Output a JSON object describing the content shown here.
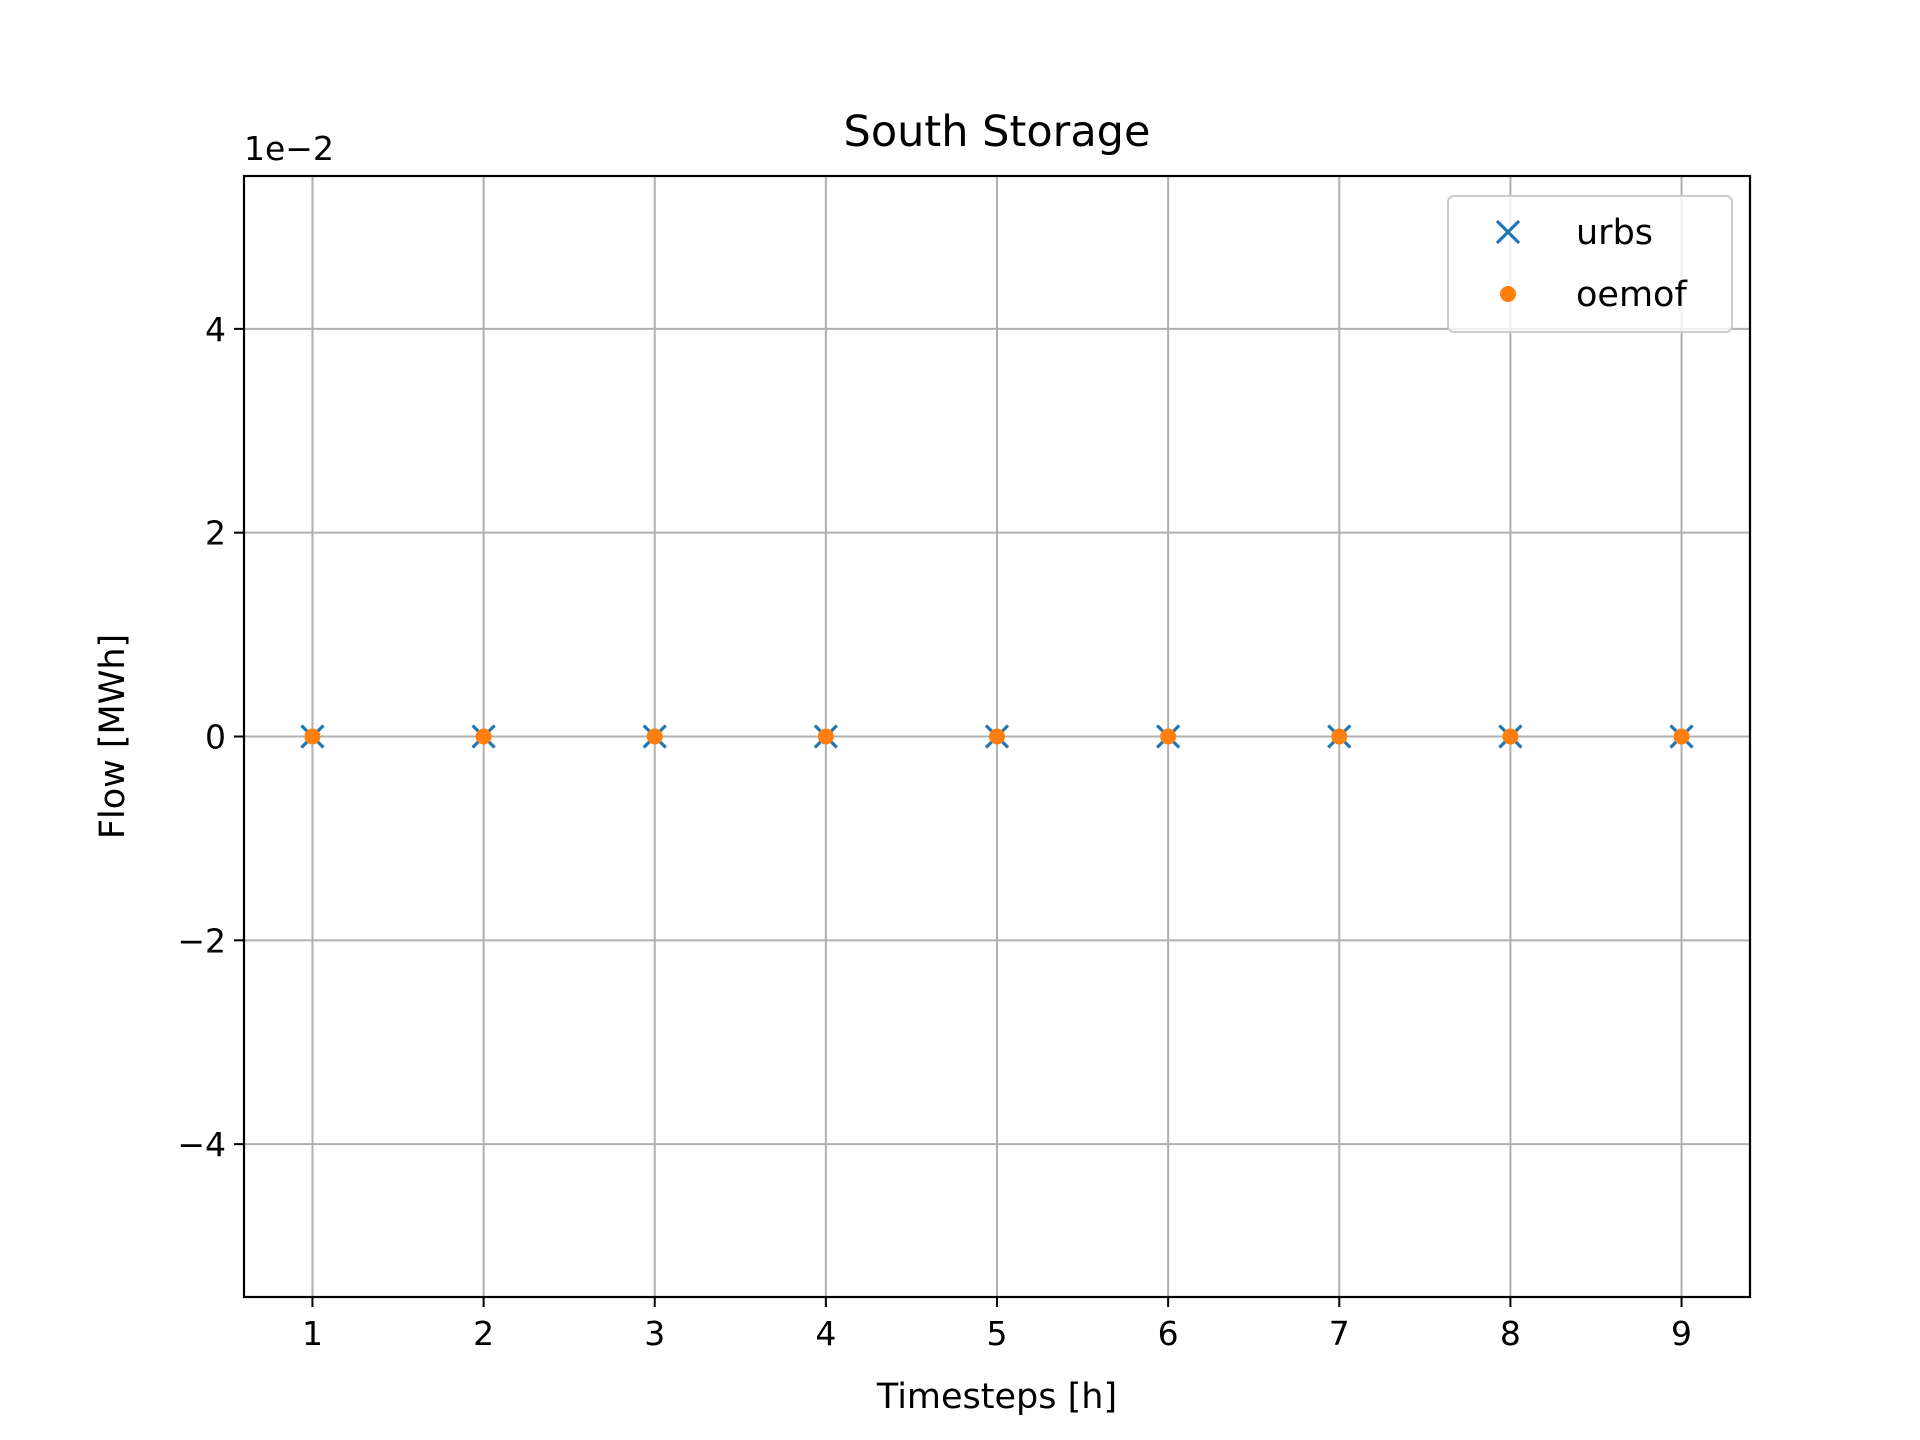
{
  "chart_data": {
    "type": "scatter",
    "title": "South Storage",
    "xlabel": "Timesteps [h]",
    "ylabel": "Flow [MWh]",
    "y_offset_label": "1e−2",
    "xlim": [
      0.6,
      9.4
    ],
    "ylim": [
      -5.5,
      5.5
    ],
    "y_scale_factor": 0.01,
    "x_ticks": [
      1,
      2,
      3,
      4,
      5,
      6,
      7,
      8,
      9
    ],
    "x_tick_labels": [
      "1",
      "2",
      "3",
      "4",
      "5",
      "6",
      "7",
      "8",
      "9"
    ],
    "y_ticks": [
      -4,
      -2,
      0,
      2,
      4
    ],
    "y_tick_labels": [
      "−4",
      "−2",
      "0",
      "2",
      "4"
    ],
    "grid": true,
    "legend_position": "top-right",
    "series": [
      {
        "name": "urbs",
        "marker": "x",
        "color": "#1f77b4",
        "x": [
          1,
          2,
          3,
          4,
          5,
          6,
          7,
          8,
          9
        ],
        "y": [
          0,
          0,
          0,
          0,
          0,
          0,
          0,
          0,
          0
        ]
      },
      {
        "name": "oemof",
        "marker": "dot",
        "color": "#ff7f0e",
        "x": [
          1,
          2,
          3,
          4,
          5,
          6,
          7,
          8,
          9
        ],
        "y": [
          0,
          0,
          0,
          0,
          0,
          0,
          0,
          0,
          0
        ]
      }
    ]
  }
}
